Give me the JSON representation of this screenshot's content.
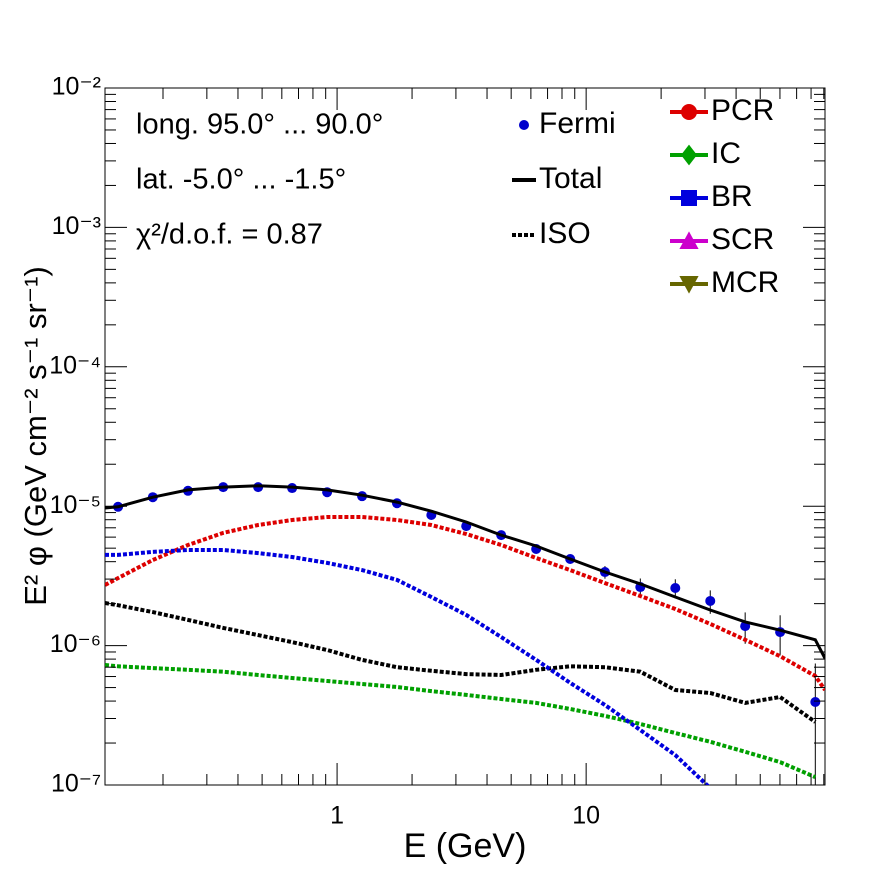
{
  "chart_data": {
    "type": "line",
    "log_x": true,
    "log_y": true,
    "x_label": "E (GeV)",
    "y_label": "E² φ (GeV cm⁻² s⁻¹ sr⁻¹)",
    "annotations": [
      "long. 95.0° ... 90.0°",
      "lat. -5.0° ... -1.5°",
      "χ²/d.o.f. = 0.87"
    ],
    "xlim": [
      0.117,
      91
    ],
    "ylim": [
      1e-07,
      0.01
    ],
    "xticks": [
      1,
      10
    ],
    "yticks": [
      {
        "value": 1e-07,
        "label": "10⁻⁷"
      },
      {
        "value": 1e-06,
        "label": "10⁻⁶"
      },
      {
        "value": 1e-05,
        "label": "10⁻⁵"
      },
      {
        "value": 0.0001,
        "label": "10⁻⁴"
      },
      {
        "value": 0.001,
        "label": "10⁻³"
      },
      {
        "value": 0.01,
        "label": "10⁻²"
      }
    ],
    "x": [
      0.117,
      0.132,
      0.182,
      0.252,
      0.349,
      0.482,
      0.66,
      0.912,
      1.26,
      1.74,
      2.39,
      3.3,
      4.56,
      6.3,
      8.63,
      11.9,
      16.5,
      22.8,
      31.5,
      43.5,
      60.1,
      83.2,
      91
    ],
    "series": [
      {
        "name": "Fermi",
        "color": "#0000cc",
        "style": "points",
        "marker": "circle",
        "values": [
          null,
          9.9e-06,
          1.16e-05,
          1.29e-05,
          1.37e-05,
          1.37e-05,
          1.35e-05,
          1.26e-05,
          1.18e-05,
          1.05e-05,
          8.65e-06,
          7.2e-06,
          6.2e-06,
          4.93e-06,
          4.18e-06,
          3.37e-06,
          2.63e-06,
          2.59e-06,
          2.09e-06,
          1.38e-06,
          1.25e-06,
          3.94e-07,
          null
        ],
        "errors": [
          null,
          1e-07,
          1e-07,
          1e-07,
          1e-07,
          1e-07,
          1e-07,
          1e-07,
          1e-07,
          1e-07,
          1e-07,
          1e-07,
          1e-07,
          1.5e-07,
          3e-07,
          3.5e-07,
          4e-07,
          4e-07,
          4e-07,
          3.5e-07,
          4e-07,
          3.5e-07,
          null
        ]
      },
      {
        "name": "Total",
        "color": "#000000",
        "style": "solid",
        "values": [
          9.7e-06,
          9.9e-06,
          1.16e-05,
          1.31e-05,
          1.37e-05,
          1.4e-05,
          1.37e-05,
          1.31e-05,
          1.2e-05,
          1.07e-05,
          9.2e-06,
          7.7e-06,
          6.2e-06,
          5.18e-06,
          4.18e-06,
          3.37e-06,
          2.77e-06,
          2.23e-06,
          1.8e-06,
          1.48e-06,
          1.29e-06,
          1.1e-06,
          8.1e-07
        ]
      },
      {
        "name": "ISO",
        "color": "#000000",
        "style": "dotted",
        "values": [
          2.02e-06,
          1.95e-06,
          1.74e-06,
          1.53e-06,
          1.34e-06,
          1.19e-06,
          1.06e-06,
          9.3e-07,
          7.9e-07,
          7e-07,
          6.6e-07,
          6.25e-07,
          6.15e-07,
          6.7e-07,
          7.1e-07,
          7e-07,
          6.5e-07,
          4.8e-07,
          4.57e-07,
          3.88e-07,
          4.28e-07,
          2.83e-07,
          null
        ]
      },
      {
        "name": "PCR",
        "color": "#dd0000",
        "style": "dotted",
        "marker": "circle",
        "values": [
          2.72e-06,
          3.05e-06,
          4.11e-06,
          5.27e-06,
          6.43e-06,
          7.33e-06,
          7.96e-06,
          8.37e-06,
          8.37e-06,
          7.96e-06,
          7.33e-06,
          6.32e-06,
          5.27e-06,
          4.25e-06,
          3.48e-06,
          2.81e-06,
          2.27e-06,
          1.83e-06,
          1.43e-06,
          1.1e-06,
          8.4e-07,
          6.05e-07,
          4.8e-07
        ]
      },
      {
        "name": "IC",
        "color": "#00a000",
        "style": "dotted",
        "marker": "diamond",
        "values": [
          7.26e-07,
          7.1e-07,
          6.9e-07,
          6.7e-07,
          6.5e-07,
          6.15e-07,
          5.86e-07,
          5.57e-07,
          5.3e-07,
          5.05e-07,
          4.72e-07,
          4.43e-07,
          4.14e-07,
          3.88e-07,
          3.51e-07,
          3.13e-07,
          2.74e-07,
          2.36e-07,
          2.04e-07,
          1.73e-07,
          1.46e-07,
          1.14e-07,
          null
        ]
      },
      {
        "name": "BR",
        "color": "#0000dd",
        "style": "dotted",
        "marker": "square",
        "values": [
          4.47e-06,
          4.47e-06,
          4.7e-06,
          4.85e-06,
          4.85e-06,
          4.61e-06,
          4.32e-06,
          3.92e-06,
          3.48e-06,
          2.96e-06,
          2.23e-06,
          1.66e-06,
          1.15e-06,
          7.9e-07,
          5.4e-07,
          3.75e-07,
          2.48e-07,
          1.64e-07,
          9.5e-08,
          null,
          null,
          null,
          null
        ]
      },
      {
        "name": "SCR",
        "color": "#cc00cc",
        "style": "dotted",
        "marker": "triangle-up",
        "values": [
          null,
          null,
          null,
          null,
          null,
          null,
          null,
          null,
          null,
          null,
          null,
          null,
          null,
          null,
          null,
          null,
          null,
          null,
          null,
          null,
          null,
          null,
          null
        ]
      },
      {
        "name": "MCR",
        "color": "#666600",
        "style": "dotted",
        "marker": "triangle-down",
        "values": [
          null,
          null,
          null,
          null,
          null,
          null,
          null,
          null,
          null,
          null,
          null,
          null,
          null,
          null,
          null,
          null,
          null,
          null,
          null,
          null,
          null,
          null,
          null
        ]
      }
    ]
  }
}
